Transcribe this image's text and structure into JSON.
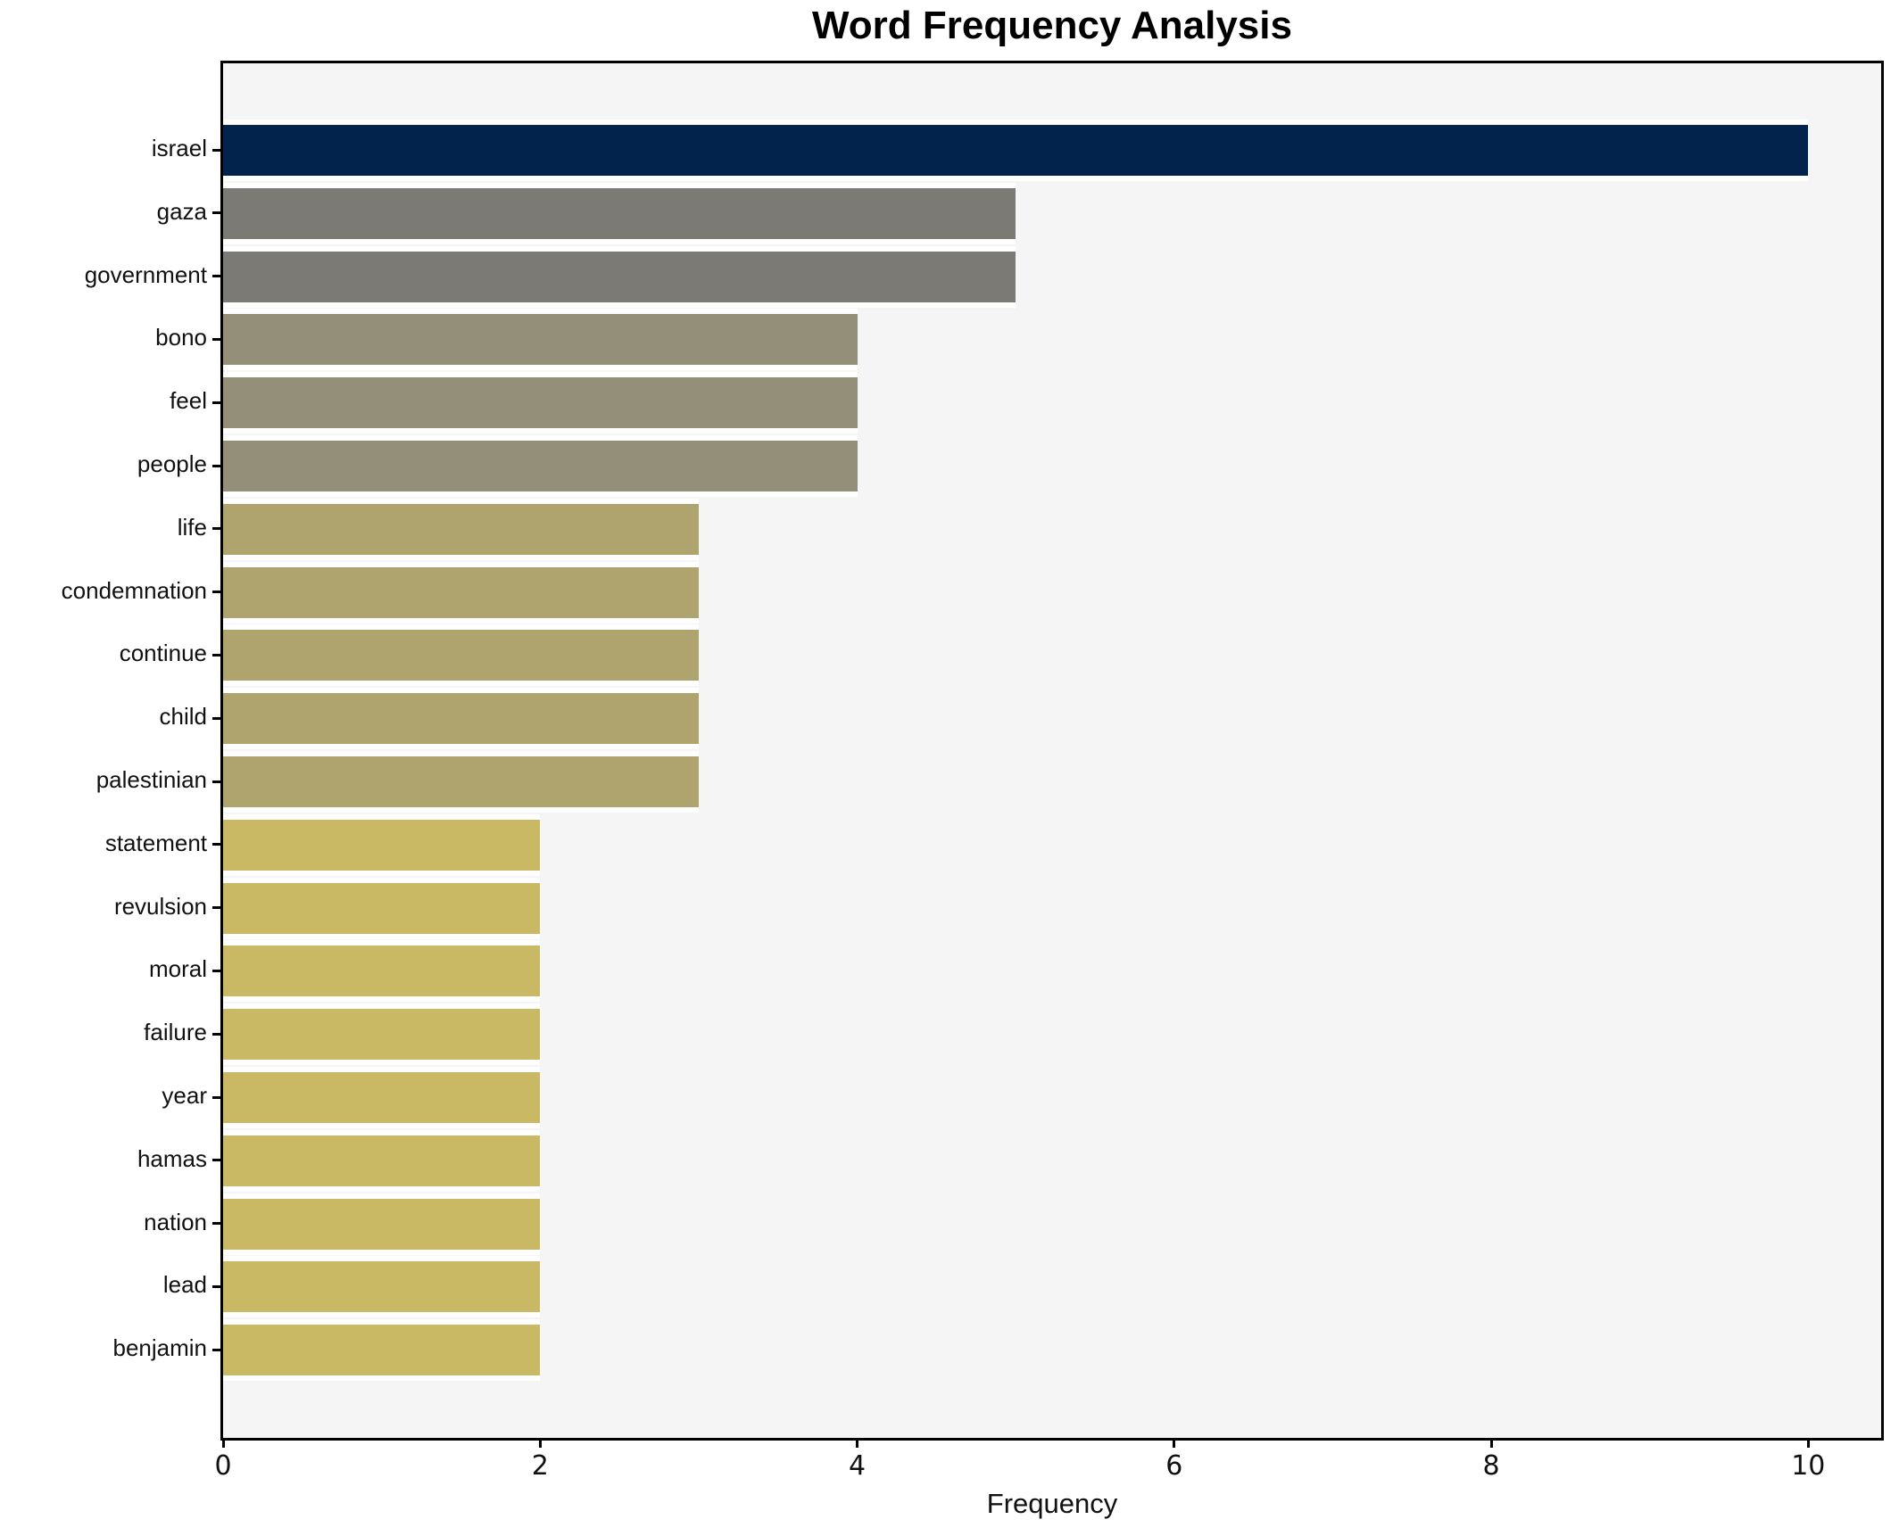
{
  "chart_data": {
    "type": "bar",
    "orientation": "horizontal",
    "title": "Word Frequency Analysis",
    "xlabel": "Frequency",
    "ylabel": "",
    "categories": [
      "israel",
      "gaza",
      "government",
      "bono",
      "feel",
      "people",
      "life",
      "condemnation",
      "continue",
      "child",
      "palestinian",
      "statement",
      "revulsion",
      "moral",
      "failure",
      "year",
      "hamas",
      "nation",
      "lead",
      "benjamin"
    ],
    "values": [
      10,
      5,
      5,
      4,
      4,
      4,
      3,
      3,
      3,
      3,
      3,
      2,
      2,
      2,
      2,
      2,
      2,
      2,
      2,
      2
    ],
    "x_ticks": [
      0,
      2,
      4,
      6,
      8,
      10
    ],
    "xlim": [
      0,
      10.46
    ],
    "grid": false,
    "legend": "none",
    "plot_background": "#f5f5f6",
    "outer_background": "#ffffff",
    "spine_color": "#000000",
    "bar_edge_color": "#ffffff",
    "colors_by_value": {
      "10": "#02234c",
      "5": "#7b7a75",
      "4": "#948f78",
      "3": "#b0a46e",
      "2": "#c9b964"
    }
  }
}
